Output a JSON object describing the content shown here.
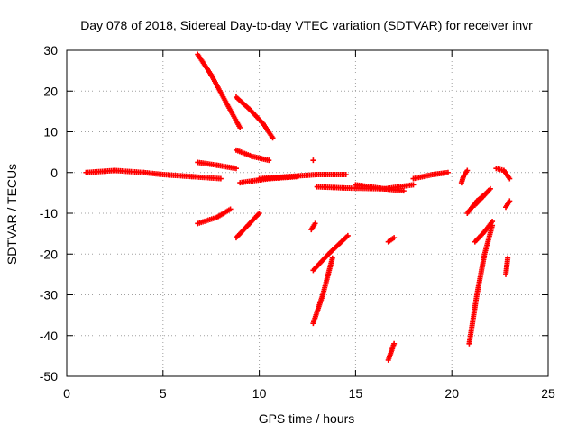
{
  "chart_data": {
    "type": "scatter",
    "title": "Day 078 of 2018, Sidereal Day-to-day VTEC variation (SDTVAR) for receiver invr",
    "xlabel": "GPS time / hours",
    "ylabel": "SDTVAR / TECUs",
    "xlim": [
      0,
      25
    ],
    "ylim": [
      -50,
      30
    ],
    "xticks": [
      0,
      5,
      10,
      15,
      20,
      25
    ],
    "yticks": [
      30,
      20,
      10,
      0,
      -10,
      -20,
      -30,
      -40,
      -50
    ],
    "grid": true,
    "marker": "plus",
    "color": "#ff0000",
    "segments": [
      {
        "x": [
          1.0,
          2.5,
          4.0,
          5.0
        ],
        "y": [
          0.0,
          0.5,
          0.0,
          -0.5
        ]
      },
      {
        "x": [
          5.0,
          6.5,
          8.0
        ],
        "y": [
          -0.5,
          -1.0,
          -1.5
        ]
      },
      {
        "x": [
          6.8,
          7.5,
          8.3,
          9.0
        ],
        "y": [
          29.0,
          24.0,
          17.0,
          11.0
        ]
      },
      {
        "x": [
          8.8,
          9.5,
          10.2,
          10.7
        ],
        "y": [
          18.5,
          15.5,
          12.0,
          8.5
        ]
      },
      {
        "x": [
          6.8,
          7.8,
          8.8
        ],
        "y": [
          2.5,
          1.8,
          1.0
        ]
      },
      {
        "x": [
          8.8,
          9.6,
          10.5
        ],
        "y": [
          5.5,
          4.0,
          3.0
        ]
      },
      {
        "x": [
          6.8,
          7.8,
          8.5
        ],
        "y": [
          -12.5,
          -11.0,
          -9.0
        ]
      },
      {
        "x": [
          8.8,
          9.5,
          10.0
        ],
        "y": [
          -16.0,
          -12.5,
          -10.0
        ]
      },
      {
        "x": [
          9.0,
          10.5,
          12.0
        ],
        "y": [
          -2.5,
          -1.5,
          -1.0
        ]
      },
      {
        "x": [
          10.0,
          11.5,
          13.0,
          14.5
        ],
        "y": [
          -1.5,
          -1.0,
          -0.5,
          -0.5
        ]
      },
      {
        "x": [
          13.0,
          14.5,
          16.5,
          18.0
        ],
        "y": [
          -3.5,
          -3.8,
          -4.0,
          -3.0
        ]
      },
      {
        "x": [
          15.0,
          16.5,
          17.5
        ],
        "y": [
          -3.0,
          -4.0,
          -4.5
        ]
      },
      {
        "x": [
          18.0,
          19.0,
          19.8
        ],
        "y": [
          -1.5,
          -0.5,
          0.0
        ]
      },
      {
        "x": [
          12.8
        ],
        "y": [
          3.0
        ]
      },
      {
        "x": [
          12.7,
          12.9
        ],
        "y": [
          -14.0,
          -12.5
        ]
      },
      {
        "x": [
          12.8,
          13.6,
          14.6
        ],
        "y": [
          -24.0,
          -20.0,
          -15.5
        ]
      },
      {
        "x": [
          12.8,
          13.3,
          13.8
        ],
        "y": [
          -37.0,
          -30.0,
          -21.0
        ]
      },
      {
        "x": [
          16.7,
          17.0
        ],
        "y": [
          -17.0,
          -16.0
        ]
      },
      {
        "x": [
          16.7,
          17.0
        ],
        "y": [
          -46.0,
          -42.0
        ]
      },
      {
        "x": [
          20.8,
          20.6,
          20.5
        ],
        "y": [
          0.5,
          -1.0,
          -2.5
        ]
      },
      {
        "x": [
          20.8,
          21.3,
          21.8
        ],
        "y": [
          -10.0,
          -7.0,
          -5.0
        ]
      },
      {
        "x": [
          21.2,
          21.6,
          22.0
        ],
        "y": [
          -8.0,
          -6.0,
          -4.0
        ]
      },
      {
        "x": [
          21.2,
          21.7,
          22.1
        ],
        "y": [
          -17.0,
          -14.5,
          -12.0
        ]
      },
      {
        "x": [
          20.9,
          21.3,
          21.7,
          22.1
        ],
        "y": [
          -42.0,
          -30.0,
          -20.0,
          -13.0
        ]
      },
      {
        "x": [
          22.3,
          22.7,
          23.0
        ],
        "y": [
          1.0,
          0.5,
          -1.5
        ]
      },
      {
        "x": [
          22.8,
          23.0
        ],
        "y": [
          -8.5,
          -7.0
        ]
      },
      {
        "x": [
          22.8,
          22.9
        ],
        "y": [
          -25.0,
          -21.0
        ]
      }
    ]
  }
}
